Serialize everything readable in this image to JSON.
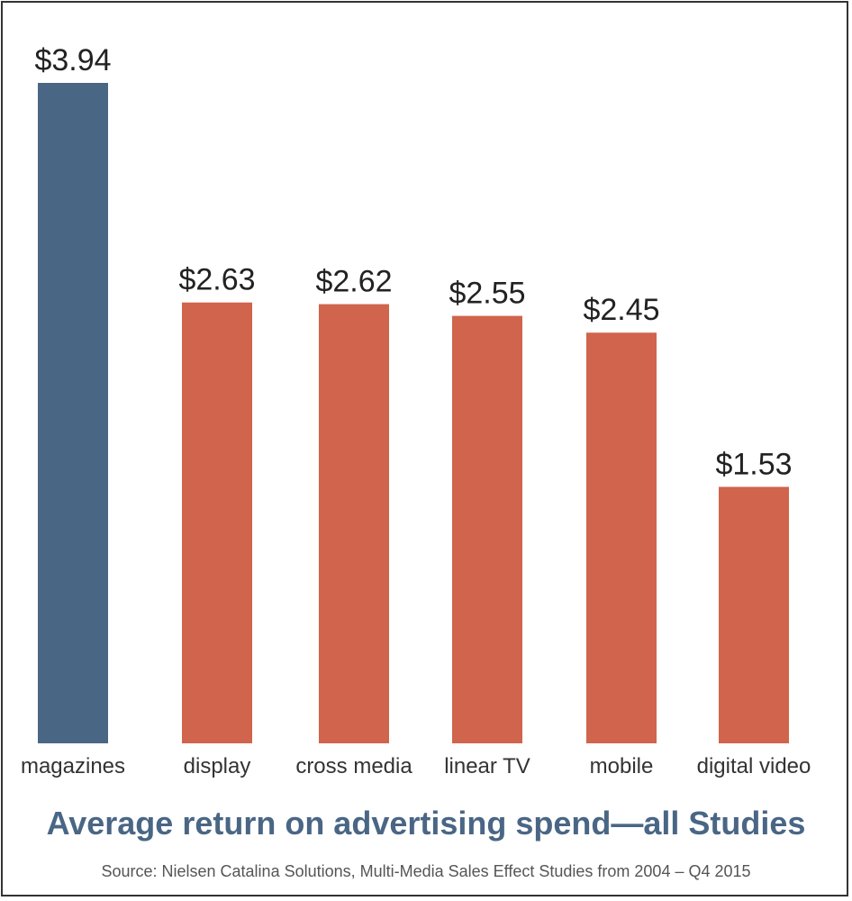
{
  "chart_data": {
    "type": "bar",
    "categories": [
      "magazines",
      "display",
      "cross media",
      "linear TV",
      "mobile",
      "digital video"
    ],
    "values": [
      3.94,
      2.63,
      2.62,
      2.55,
      2.45,
      1.53
    ],
    "value_labels": [
      "$3.94",
      "$2.63",
      "$2.62",
      "$2.55",
      "$2.45",
      "$1.53"
    ],
    "highlight_index": 0,
    "colors": {
      "highlight": "#4a6685",
      "default": "#d0644c"
    },
    "title": "Average return on advertising spend—all Studies",
    "source": "Source: Nielsen Catalina Solutions, Multi-Media Sales Effect Studies from 2004 – Q4 2015",
    "xlabel": "",
    "ylabel": "",
    "ylim": [
      0,
      3.94
    ],
    "grid": false,
    "legend": "none"
  }
}
